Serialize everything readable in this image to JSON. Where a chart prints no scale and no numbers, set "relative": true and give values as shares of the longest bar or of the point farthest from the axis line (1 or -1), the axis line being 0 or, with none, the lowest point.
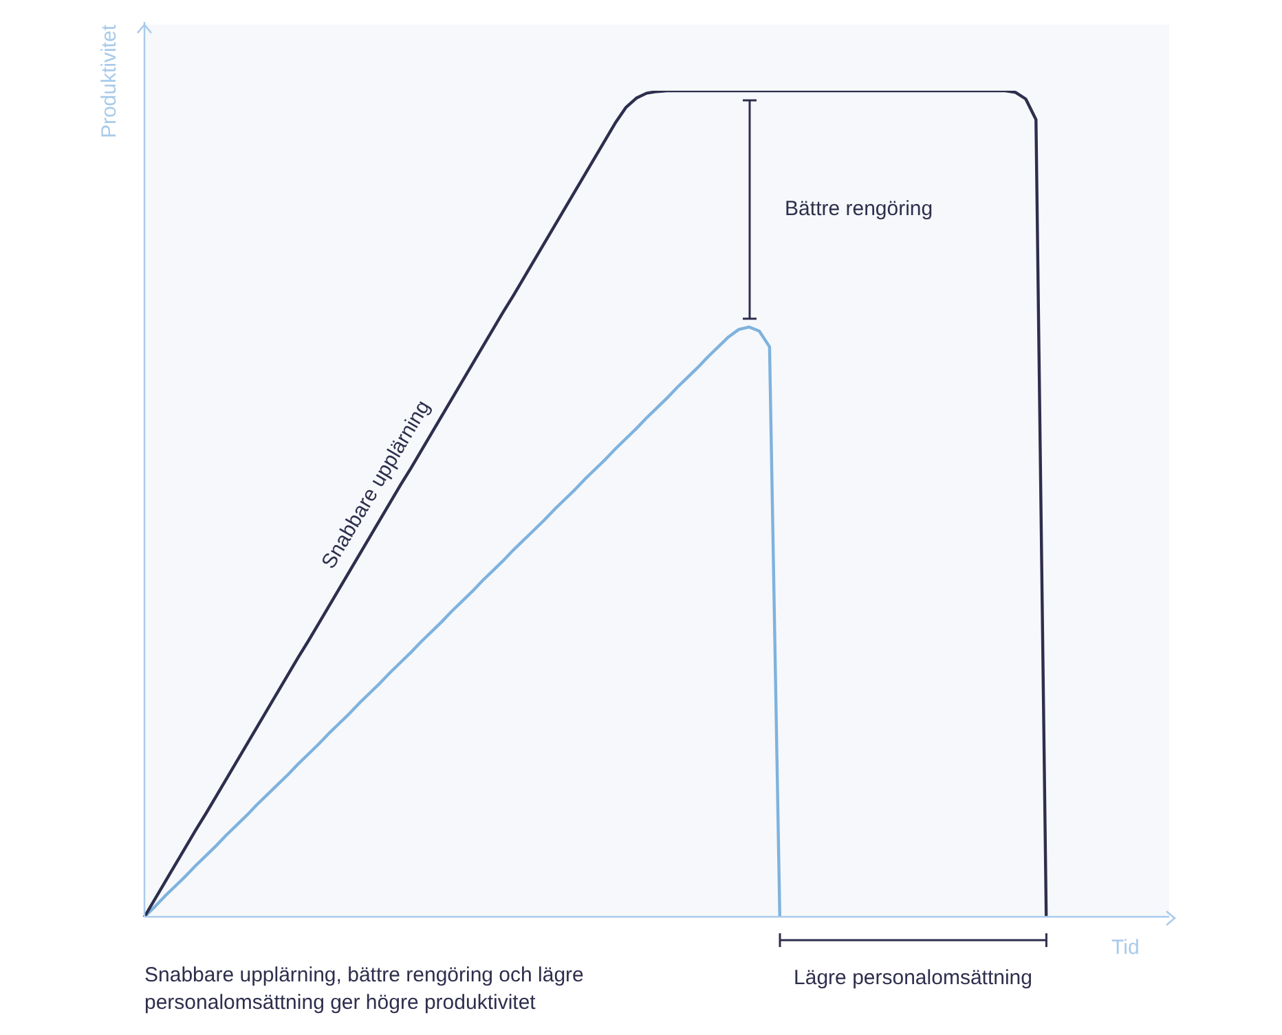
{
  "chart_data": {
    "type": "line",
    "relative": true,
    "xlabel": "Tid",
    "ylabel": "Produktivitet",
    "grid": false,
    "legend": false,
    "marker": "none",
    "line_style": "solid",
    "categories": [
      null,
      null,
      null,
      null,
      null,
      null,
      null,
      null,
      null,
      null,
      null,
      null,
      null,
      null,
      null,
      null,
      null,
      null,
      null,
      null,
      null,
      null,
      null,
      null,
      null,
      null,
      null,
      null,
      null,
      null,
      null,
      null,
      null,
      null,
      null,
      null,
      null,
      null,
      null,
      null,
      null,
      null,
      null,
      null,
      null,
      null,
      null,
      null,
      null,
      null,
      null,
      null,
      null,
      null,
      null,
      null,
      null,
      null,
      null,
      null,
      null,
      null,
      null,
      null,
      null,
      null,
      null,
      null,
      null,
      null,
      null,
      null,
      null,
      null,
      null,
      null,
      null,
      null,
      null,
      null,
      null,
      null,
      null,
      null,
      null,
      null,
      null,
      null,
      null,
      null,
      null,
      null,
      null,
      null,
      null,
      null,
      null,
      null,
      null,
      null,
      null
    ],
    "series": [
      {
        "color": "#2e2e4d",
        "values": [
          0,
          0.021,
          0.042,
          0.063,
          0.084,
          0.105,
          0.125,
          0.146,
          0.167,
          0.188,
          0.209,
          0.23,
          0.251,
          0.272,
          0.293,
          0.314,
          0.334,
          0.355,
          0.376,
          0.397,
          0.418,
          0.439,
          0.46,
          0.481,
          0.502,
          0.523,
          0.543,
          0.564,
          0.585,
          0.606,
          0.627,
          0.648,
          0.669,
          0.69,
          0.711,
          0.732,
          0.752,
          0.773,
          0.794,
          0.815,
          0.836,
          0.857,
          0.878,
          0.899,
          0.92,
          0.941,
          0.962,
          0.98,
          0.991,
          0.997,
          0.999,
          1,
          1,
          1,
          1,
          1,
          1,
          1,
          1,
          1,
          1,
          1,
          1,
          1,
          1,
          1,
          1,
          1,
          1,
          1,
          1,
          1,
          1,
          1,
          1,
          1,
          1,
          1,
          1,
          1,
          1,
          1,
          1,
          1,
          1,
          0.998,
          0.99,
          0.965,
          0,
          null,
          null,
          null,
          null,
          null,
          null,
          null,
          null,
          null,
          null,
          null,
          null
        ]
      },
      {
        "color": "#7fb2de",
        "values": [
          0,
          0.012,
          0.025,
          0.037,
          0.049,
          0.062,
          0.074,
          0.086,
          0.099,
          0.111,
          0.123,
          0.136,
          0.148,
          0.16,
          0.172,
          0.185,
          0.197,
          0.209,
          0.222,
          0.234,
          0.246,
          0.259,
          0.271,
          0.283,
          0.296,
          0.308,
          0.32,
          0.333,
          0.345,
          0.357,
          0.37,
          0.382,
          0.394,
          0.407,
          0.419,
          0.431,
          0.444,
          0.456,
          0.468,
          0.48,
          0.493,
          0.505,
          0.517,
          0.53,
          0.542,
          0.554,
          0.567,
          0.579,
          0.591,
          0.604,
          0.616,
          0.628,
          0.641,
          0.653,
          0.665,
          0.678,
          0.69,
          0.702,
          0.711,
          0.714,
          0.709,
          0.69,
          0,
          null,
          null,
          null,
          null,
          null,
          null,
          null,
          null,
          null,
          null,
          null,
          null,
          null,
          null,
          null,
          null,
          null,
          null,
          null,
          null,
          null,
          null,
          null,
          null,
          null,
          null,
          null,
          null,
          null,
          null,
          null,
          null,
          null,
          null,
          null,
          null,
          null,
          null
        ]
      }
    ],
    "annotations": [
      "Snabbare upplärning",
      "Bättre rengöring",
      "Lägre personalomsättning",
      "Snabbare upplärning, bättre rengöring och lägre personalomsättning ger högre produktivitet"
    ]
  }
}
